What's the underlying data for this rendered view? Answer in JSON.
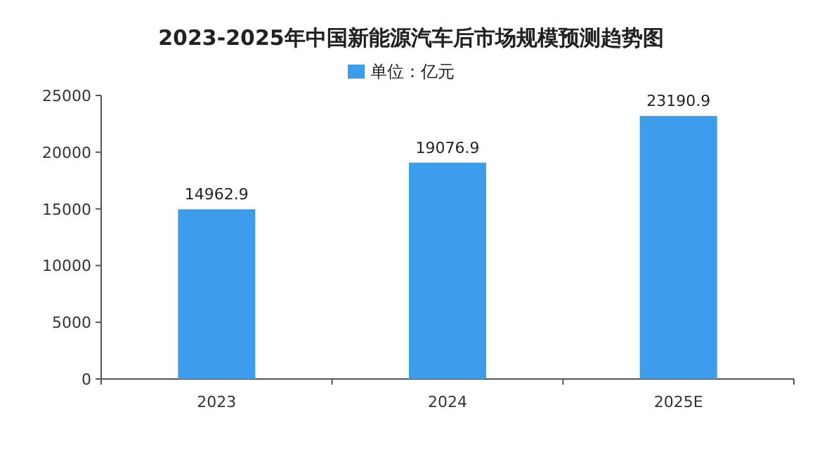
{
  "chart_data": {
    "type": "bar",
    "title": "2023-2025年中国新能源汽车后市场规模预测趋势图",
    "categories": [
      "2023",
      "2024",
      "2025E"
    ],
    "series": [
      {
        "name": "单位：亿元",
        "color": "#3d9cec",
        "values": [
          14962.9,
          19076.9,
          23190.9
        ]
      }
    ],
    "ylim": [
      0,
      25000
    ],
    "yticks": [
      0,
      5000,
      10000,
      15000,
      20000,
      25000
    ],
    "data_labels": true,
    "legend": "top"
  }
}
